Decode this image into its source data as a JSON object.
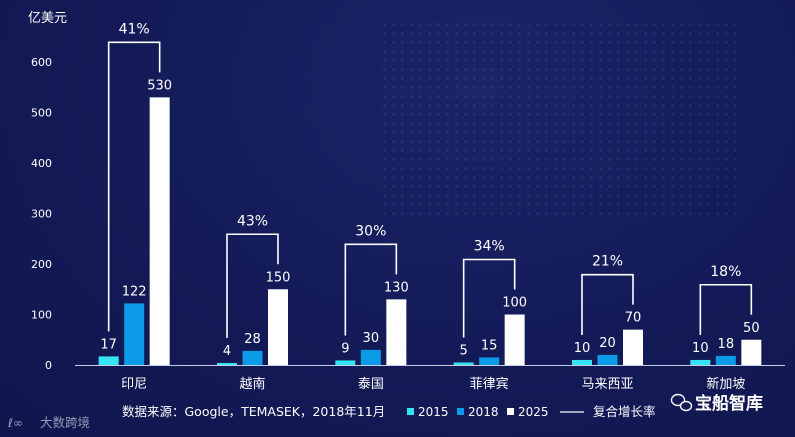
{
  "chart_data": {
    "type": "bar",
    "ylabel": "亿美元",
    "ylim": [
      0,
      600
    ],
    "yticks": [
      0,
      100,
      200,
      300,
      400,
      500,
      600
    ],
    "categories": [
      "印尼",
      "越南",
      "泰国",
      "菲律宾",
      "马来西亚",
      "新加坡"
    ],
    "series": [
      {
        "name": "2015",
        "color": "#35e4f2",
        "values": [
          17,
          4,
          9,
          5,
          10,
          10
        ]
      },
      {
        "name": "2018",
        "color": "#0b9be6",
        "values": [
          122,
          28,
          30,
          15,
          20,
          18
        ]
      },
      {
        "name": "2025",
        "color": "#ffffff",
        "values": [
          530,
          150,
          130,
          100,
          70,
          50
        ]
      }
    ],
    "cagr": {
      "name": "复合增长率",
      "values": [
        "41%",
        "43%",
        "30%",
        "34%",
        "21%",
        "18%"
      ]
    },
    "legend_position": "bottom"
  },
  "footer": {
    "source": "数据来源：Google，TEMASEK，2018年11月",
    "watermark_left": "大数跨境",
    "watermark_right": "宝船智库"
  },
  "colors": {
    "background": "#131a57",
    "axis": "#c8cde6",
    "text": "#ffffff"
  }
}
